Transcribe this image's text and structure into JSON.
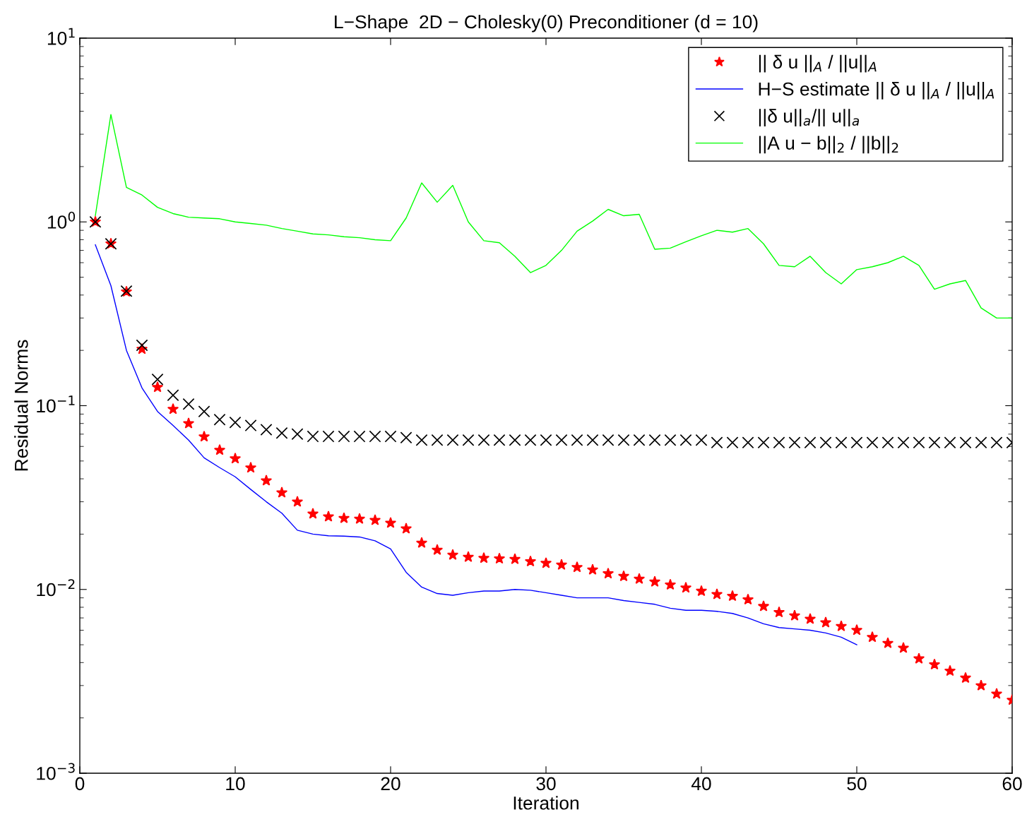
{
  "chart_data": {
    "type": "line",
    "title": "L−Shape  2D − Cholesky(0) Preconditioner (d = 10)",
    "xlabel": "Iteration",
    "ylabel": "Residual Norms",
    "log": "y",
    "xlim": [
      0,
      60
    ],
    "xticks": [
      0,
      10,
      20,
      30,
      40,
      50,
      60
    ],
    "ylim": [
      0.001,
      10
    ],
    "yticks": [
      {
        "value": 0.001,
        "label": "10$^{−3}$"
      },
      {
        "value": 0.01,
        "label": "10$^{−2}$"
      },
      {
        "value": 0.1,
        "label": "10$^{−1}$"
      },
      {
        "value": 1,
        "label": "10$^{0}$"
      },
      {
        "value": 10,
        "label": "10$^{1}$"
      }
    ],
    "grid": false,
    "legend": "top right",
    "x": [
      1,
      2,
      3,
      4,
      5,
      6,
      7,
      8,
      9,
      10,
      11,
      12,
      13,
      14,
      15,
      16,
      17,
      18,
      19,
      20,
      21,
      22,
      23,
      24,
      25,
      26,
      27,
      28,
      29,
      30,
      31,
      32,
      33,
      34,
      35,
      36,
      37,
      38,
      39,
      40,
      41,
      42,
      43,
      44,
      45,
      46,
      47,
      48,
      49,
      50,
      51,
      52,
      53,
      54,
      55,
      56,
      57,
      58,
      59,
      60
    ],
    "series": [
      {
        "name": "|| δ u ||$_{A}$ / ||u||$_{A}$",
        "type": "scatter",
        "marker": "star",
        "color": "#ff0000",
        "values": [
          1.0,
          0.76,
          0.417,
          0.203,
          0.126,
          0.0957,
          0.08,
          0.0678,
          0.0573,
          0.0515,
          0.0459,
          0.0391,
          0.0336,
          0.03,
          0.0258,
          0.0249,
          0.0244,
          0.0242,
          0.0238,
          0.023,
          0.0214,
          0.0179,
          0.0164,
          0.0154,
          0.015,
          0.0148,
          0.0147,
          0.0146,
          0.0142,
          0.0139,
          0.0136,
          0.0132,
          0.0128,
          0.0122,
          0.0118,
          0.0114,
          0.011,
          0.0106,
          0.0102,
          0.0098,
          0.0094,
          0.0092,
          0.0088,
          0.0081,
          0.0075,
          0.0072,
          0.0069,
          0.0066,
          0.0063,
          0.006,
          0.0055,
          0.0051,
          0.0048,
          0.0042,
          0.0039,
          0.0036,
          0.0033,
          0.003,
          0.0027,
          0.0025
        ]
      },
      {
        "name": "H−S estimate || δ u ||$_{A}$ / ||u||$_{A}$",
        "color": "#0000ff",
        "x": [
          1,
          2,
          3,
          4,
          5,
          6,
          7,
          8,
          9,
          10,
          11,
          12,
          13,
          14,
          15,
          16,
          17,
          18,
          19,
          20,
          21,
          22,
          23,
          24,
          25,
          26,
          27,
          28,
          29,
          30,
          31,
          32,
          33,
          34,
          35,
          36,
          37,
          38,
          39,
          40,
          41,
          42,
          43,
          44,
          45,
          46,
          47,
          48,
          49,
          50
        ],
        "values": [
          0.75,
          0.45,
          0.2,
          0.125,
          0.093,
          0.078,
          0.065,
          0.052,
          0.046,
          0.041,
          0.035,
          0.03,
          0.026,
          0.021,
          0.02,
          0.0196,
          0.0195,
          0.0193,
          0.0184,
          0.0166,
          0.0124,
          0.0103,
          0.0095,
          0.0093,
          0.0096,
          0.0098,
          0.0098,
          0.01,
          0.0099,
          0.0096,
          0.0093,
          0.009,
          0.009,
          0.009,
          0.0087,
          0.0085,
          0.0083,
          0.0079,
          0.0077,
          0.0077,
          0.0076,
          0.0074,
          0.007,
          0.0065,
          0.0062,
          0.0061,
          0.006,
          0.0058,
          0.0055,
          0.005
        ]
      },
      {
        "name": "||δ u||$_{a}$/|| u||$_{a}$",
        "type": "scatter",
        "marker": "cross",
        "color": "#000000",
        "values": [
          1.0,
          0.76,
          0.42,
          0.213,
          0.139,
          0.114,
          0.102,
          0.093,
          0.084,
          0.081,
          0.078,
          0.074,
          0.071,
          0.07,
          0.068,
          0.068,
          0.068,
          0.068,
          0.068,
          0.068,
          0.067,
          0.065,
          0.065,
          0.065,
          0.065,
          0.065,
          0.065,
          0.065,
          0.065,
          0.065,
          0.065,
          0.065,
          0.065,
          0.065,
          0.065,
          0.065,
          0.065,
          0.065,
          0.065,
          0.065,
          0.063,
          0.063,
          0.063,
          0.063,
          0.063,
          0.063,
          0.063,
          0.063,
          0.063,
          0.063,
          0.063,
          0.063,
          0.063,
          0.063,
          0.063,
          0.063,
          0.063,
          0.063,
          0.063,
          0.063
        ]
      },
      {
        "name": "||A u − b||$_{2}$ / ||b||$_{2}$",
        "color": "#00ff00",
        "values": [
          1.08,
          3.84,
          1.54,
          1.4,
          1.2,
          1.11,
          1.06,
          1.05,
          1.04,
          1.0,
          0.98,
          0.96,
          0.92,
          0.89,
          0.86,
          0.85,
          0.83,
          0.82,
          0.8,
          0.79,
          1.05,
          1.63,
          1.28,
          1.58,
          1.0,
          0.79,
          0.77,
          0.65,
          0.53,
          0.58,
          0.7,
          0.89,
          1.01,
          1.17,
          1.08,
          1.1,
          0.71,
          0.72,
          0.78,
          0.84,
          0.9,
          0.88,
          0.92,
          0.76,
          0.58,
          0.57,
          0.65,
          0.53,
          0.46,
          0.55,
          0.57,
          0.6,
          0.65,
          0.58,
          0.43,
          0.46,
          0.48,
          0.34,
          0.3,
          0.3
        ]
      }
    ]
  }
}
